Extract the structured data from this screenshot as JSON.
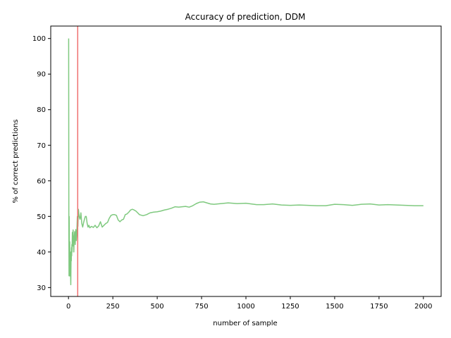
{
  "chart_data": {
    "type": "line",
    "title": "Accuracy of prediction, DDM",
    "xlabel": "number of sample",
    "ylabel": "% of correct predictions",
    "xlim": [
      -100,
      2100
    ],
    "ylim": [
      27.5,
      103.5
    ],
    "xticks": [
      0,
      250,
      500,
      750,
      1000,
      1250,
      1500,
      1750,
      2000
    ],
    "yticks": [
      30,
      40,
      50,
      60,
      70,
      80,
      90,
      100
    ],
    "grid": false,
    "legend": "none",
    "series": [
      {
        "color": "#7fc97f",
        "x": [
          1,
          2,
          3,
          4,
          5,
          6,
          7,
          8,
          9,
          10,
          11,
          12,
          13,
          14,
          15,
          16,
          17,
          18,
          19,
          20,
          22,
          24,
          26,
          28,
          30,
          32,
          35,
          38,
          41,
          44,
          47,
          50,
          53,
          56,
          60,
          65,
          70,
          75,
          80,
          85,
          90,
          95,
          100,
          105,
          110,
          115,
          120,
          130,
          140,
          150,
          160,
          170,
          180,
          190,
          200,
          210,
          220,
          230,
          240,
          250,
          260,
          270,
          280,
          290,
          300,
          310,
          320,
          330,
          340,
          350,
          360,
          370,
          380,
          390,
          400,
          420,
          440,
          460,
          480,
          500,
          520,
          540,
          560,
          580,
          600,
          620,
          640,
          660,
          680,
          700,
          720,
          740,
          760,
          780,
          800,
          820,
          840,
          860,
          880,
          900,
          950,
          1000,
          1030,
          1060,
          1100,
          1150,
          1200,
          1250,
          1300,
          1350,
          1400,
          1450,
          1500,
          1550,
          1600,
          1650,
          1700,
          1750,
          1800,
          1850,
          1900,
          1950,
          2000
        ],
        "y": [
          100,
          50,
          33.3,
          50,
          40,
          33.3,
          42.9,
          37.5,
          33.3,
          40,
          36.4,
          33.3,
          30.8,
          35.7,
          40,
          37.5,
          41.2,
          38.9,
          42.1,
          40,
          45.5,
          41.7,
          46.2,
          42.9,
          40,
          43.8,
          45.7,
          42.1,
          46.3,
          43.2,
          45.5,
          50,
          47.2,
          52,
          50,
          49.2,
          51,
          48,
          47,
          48.2,
          49.2,
          50,
          50,
          48.1,
          47,
          47.5,
          46.8,
          47.2,
          46.9,
          47.5,
          46.8,
          47.3,
          48.5,
          47,
          47.5,
          48,
          48.3,
          49.5,
          50.3,
          50.5,
          50.5,
          50.3,
          49,
          48.5,
          49,
          49.2,
          50.5,
          50.7,
          51.2,
          51.8,
          52,
          51.8,
          51.5,
          51,
          50.5,
          50.2,
          50.5,
          51,
          51.2,
          51.3,
          51.5,
          51.8,
          52,
          52.3,
          52.7,
          52.6,
          52.7,
          52.8,
          52.6,
          53,
          53.6,
          54,
          54.1,
          53.8,
          53.5,
          53.4,
          53.5,
          53.6,
          53.7,
          53.8,
          53.6,
          53.7,
          53.5,
          53.3,
          53.3,
          53.5,
          53.2,
          53.1,
          53.2,
          53.1,
          53,
          53,
          53.4,
          53.3,
          53.1,
          53.4,
          53.5,
          53.2,
          53.3,
          53.2,
          53.1,
          53,
          53
        ]
      }
    ],
    "vertical_line": {
      "x": 52,
      "color": "#f07070"
    }
  }
}
